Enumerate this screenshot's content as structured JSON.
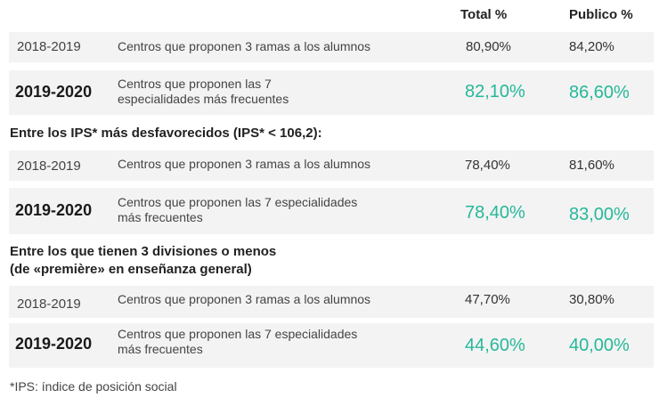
{
  "header": {
    "total": "Total %",
    "publico": "Publico %"
  },
  "groups": [
    {
      "title": "",
      "rows": [
        {
          "year": "2018-2019",
          "desc": [
            "Centros que proponen 3 ramas a los alumnos"
          ],
          "total": "80,90%",
          "publico": "84,20%",
          "highlight": false
        },
        {
          "year": "2019-2020",
          "desc": [
            "Centros que proponen las 7",
            "especialidades más frecuentes"
          ],
          "total": "82,10%",
          "publico": "86,60%",
          "highlight": true
        }
      ]
    },
    {
      "title": "Entre los IPS* más desfavorecidos (IPS* < 106,2):",
      "rows": [
        {
          "year": "2018-2019",
          "desc": [
            "Centros que proponen 3 ramas a los alumnos"
          ],
          "total": "78,40%",
          "publico": "81,60%",
          "highlight": false
        },
        {
          "year": "2019-2020",
          "desc": [
            "Centros que proponen las 7 especialidades",
            "más frecuentes"
          ],
          "total": "78,40%",
          "publico": "83,00%",
          "highlight": true
        }
      ]
    },
    {
      "title": "Entre los que tienen 3 divisiones o menos",
      "title2": "(de «première» en enseñanza general)",
      "rows": [
        {
          "year": "2018-2019",
          "desc": [
            "Centros que proponen 3 ramas a los alumnos"
          ],
          "total": "47,70%",
          "publico": "30,80%",
          "highlight": false
        },
        {
          "year": "2019-2020",
          "desc": [
            "Centros que proponen las 7 especialidades",
            "más frecuentes"
          ],
          "total": "44,60%",
          "publico": "40,00%",
          "highlight": true
        }
      ]
    }
  ],
  "footnote": "*IPS: índice de posición social",
  "colors": {
    "highlight": "#26b89a",
    "row_bg": "#f3f3f3"
  }
}
